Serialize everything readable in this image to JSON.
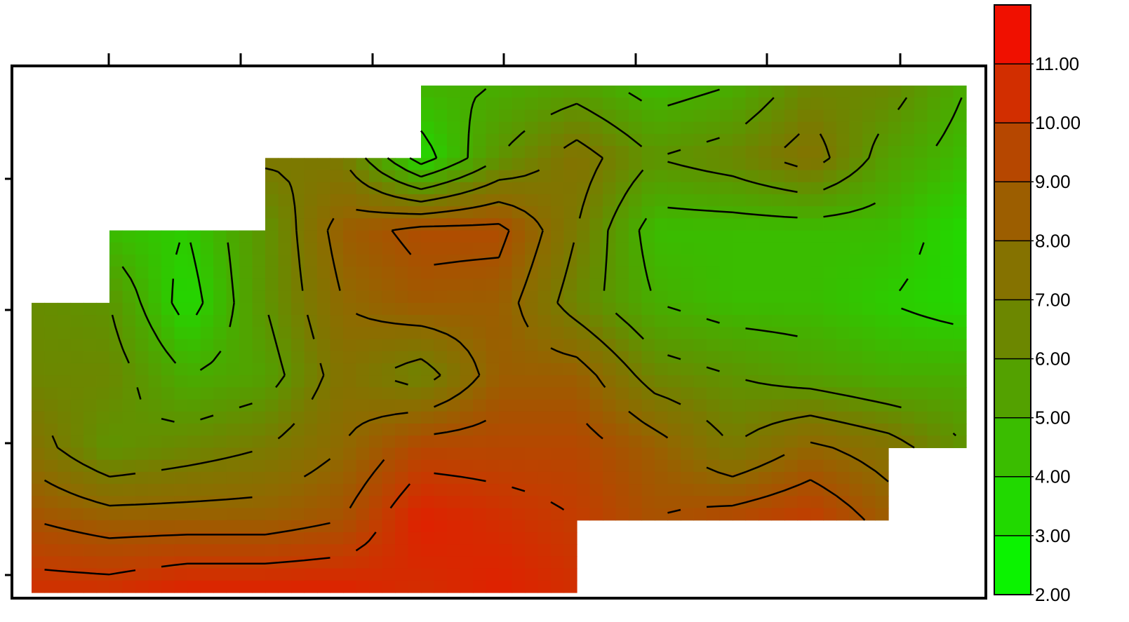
{
  "chart_data": {
    "type": "contour",
    "x_nodes": 13,
    "grid": [
      [
        null,
        null,
        null,
        null,
        null,
        null,
        5,
        5.5,
        4.5,
        5,
        6.5,
        6.5,
        5
      ],
      [
        null,
        null,
        null,
        null,
        7,
        3.5,
        6,
        7.5,
        6,
        6.5,
        7.5,
        5.5,
        4.5
      ],
      [
        null,
        null,
        4,
        6,
        8.5,
        9.3,
        9.3,
        7,
        4.5,
        4.5,
        4.5,
        4.5,
        3.5
      ],
      [
        null,
        6,
        3.5,
        6,
        8,
        8.7,
        8.5,
        6.5,
        5,
        4.5,
        4.5,
        4,
        3.5
      ],
      [
        6.5,
        6.5,
        5,
        5.5,
        7.5,
        6.5,
        8.5,
        8.5,
        6.5,
        6,
        5.5,
        5,
        5
      ],
      [
        7.5,
        6,
        6.5,
        7,
        8,
        9.5,
        9.5,
        9.5,
        8.5,
        7,
        8.2,
        7.5,
        6
      ],
      [
        9,
        8.5,
        8.5,
        8.5,
        9,
        11,
        10.5,
        10,
        9,
        9.5,
        10,
        null,
        null
      ],
      [
        10.5,
        10.5,
        11,
        11,
        11,
        10.5,
        11,
        null,
        null,
        null,
        null,
        null,
        null
      ]
    ],
    "zlim": [
      2,
      12
    ],
    "colors": [
      "#00ff00",
      "#16e600",
      "#2ccc00",
      "#47ad00",
      "#5e9400",
      "#7a7a00",
      "#8f6a00",
      "#a85200",
      "#c43c00",
      "#e02000",
      "#ff0000"
    ],
    "zticks": [
      {
        "value": 2,
        "label": "2.00"
      },
      {
        "value": 3,
        "label": "3.00"
      },
      {
        "value": 4,
        "label": "4.00"
      },
      {
        "value": 5,
        "label": "5.00"
      },
      {
        "value": 6,
        "label": "6.00"
      },
      {
        "value": 7,
        "label": "7.00"
      },
      {
        "value": 8,
        "label": "8.00"
      },
      {
        "value": 9,
        "label": "9.00"
      },
      {
        "value": 10,
        "label": "10.00"
      },
      {
        "value": 11,
        "label": "11.00"
      }
    ]
  }
}
